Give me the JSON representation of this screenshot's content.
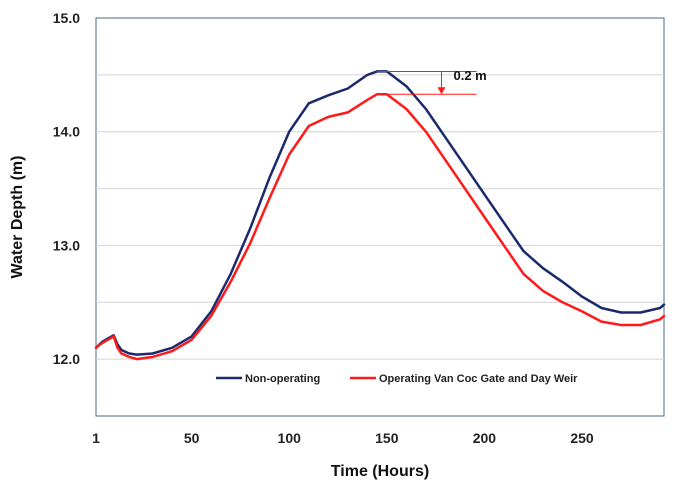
{
  "chart_data": {
    "type": "line",
    "title": "",
    "xlabel": "Time (Hours)",
    "ylabel": "Water Depth (m)",
    "xlim": [
      1,
      292
    ],
    "ylim": [
      11.5,
      15.0
    ],
    "x_ticks": [
      1,
      50,
      100,
      150,
      200,
      250
    ],
    "x_tick_labels": [
      "1",
      "50",
      "100",
      "150",
      "200",
      "250"
    ],
    "y_ticks": [
      12.0,
      13.0,
      14.0,
      15.0
    ],
    "y_tick_labels": [
      "12.0",
      "13.0",
      "14.0",
      "15.0"
    ],
    "y_minor_gridlines": [
      12.5,
      13.5,
      14.5
    ],
    "grid": "horizontal",
    "legend_position": "bottom",
    "annotation": "0.2 m",
    "series": [
      {
        "name": "Non-operating",
        "color": "#1a2a6c",
        "x": [
          1,
          4,
          8,
          10,
          12,
          14,
          18,
          22,
          30,
          40,
          50,
          60,
          70,
          80,
          90,
          100,
          110,
          120,
          130,
          140,
          145,
          150,
          160,
          170,
          180,
          190,
          200,
          210,
          220,
          230,
          240,
          250,
          260,
          270,
          280,
          290,
          292
        ],
        "y": [
          12.1,
          12.15,
          12.19,
          12.21,
          12.13,
          12.08,
          12.05,
          12.04,
          12.05,
          12.1,
          12.2,
          12.42,
          12.75,
          13.15,
          13.6,
          14.0,
          14.25,
          14.32,
          14.38,
          14.5,
          14.53,
          14.53,
          14.4,
          14.2,
          13.95,
          13.7,
          13.45,
          13.2,
          12.95,
          12.8,
          12.68,
          12.55,
          12.45,
          12.41,
          12.41,
          12.45,
          12.48
        ]
      },
      {
        "name": "Operating Van Coc Gate and Day Weir",
        "color": "#ff1a1a",
        "x": [
          1,
          4,
          8,
          10,
          12,
          14,
          18,
          22,
          30,
          40,
          50,
          60,
          70,
          80,
          90,
          100,
          110,
          120,
          130,
          140,
          145,
          150,
          160,
          170,
          180,
          190,
          200,
          210,
          220,
          230,
          240,
          250,
          260,
          270,
          280,
          290,
          292
        ],
        "y": [
          12.1,
          12.14,
          12.18,
          12.2,
          12.1,
          12.05,
          12.02,
          12.0,
          12.02,
          12.07,
          12.17,
          12.38,
          12.68,
          13.02,
          13.42,
          13.8,
          14.05,
          14.13,
          14.17,
          14.28,
          14.33,
          14.33,
          14.2,
          14.0,
          13.75,
          13.5,
          13.25,
          13.0,
          12.75,
          12.6,
          12.5,
          12.42,
          12.33,
          12.3,
          12.3,
          12.35,
          12.38
        ]
      }
    ]
  }
}
